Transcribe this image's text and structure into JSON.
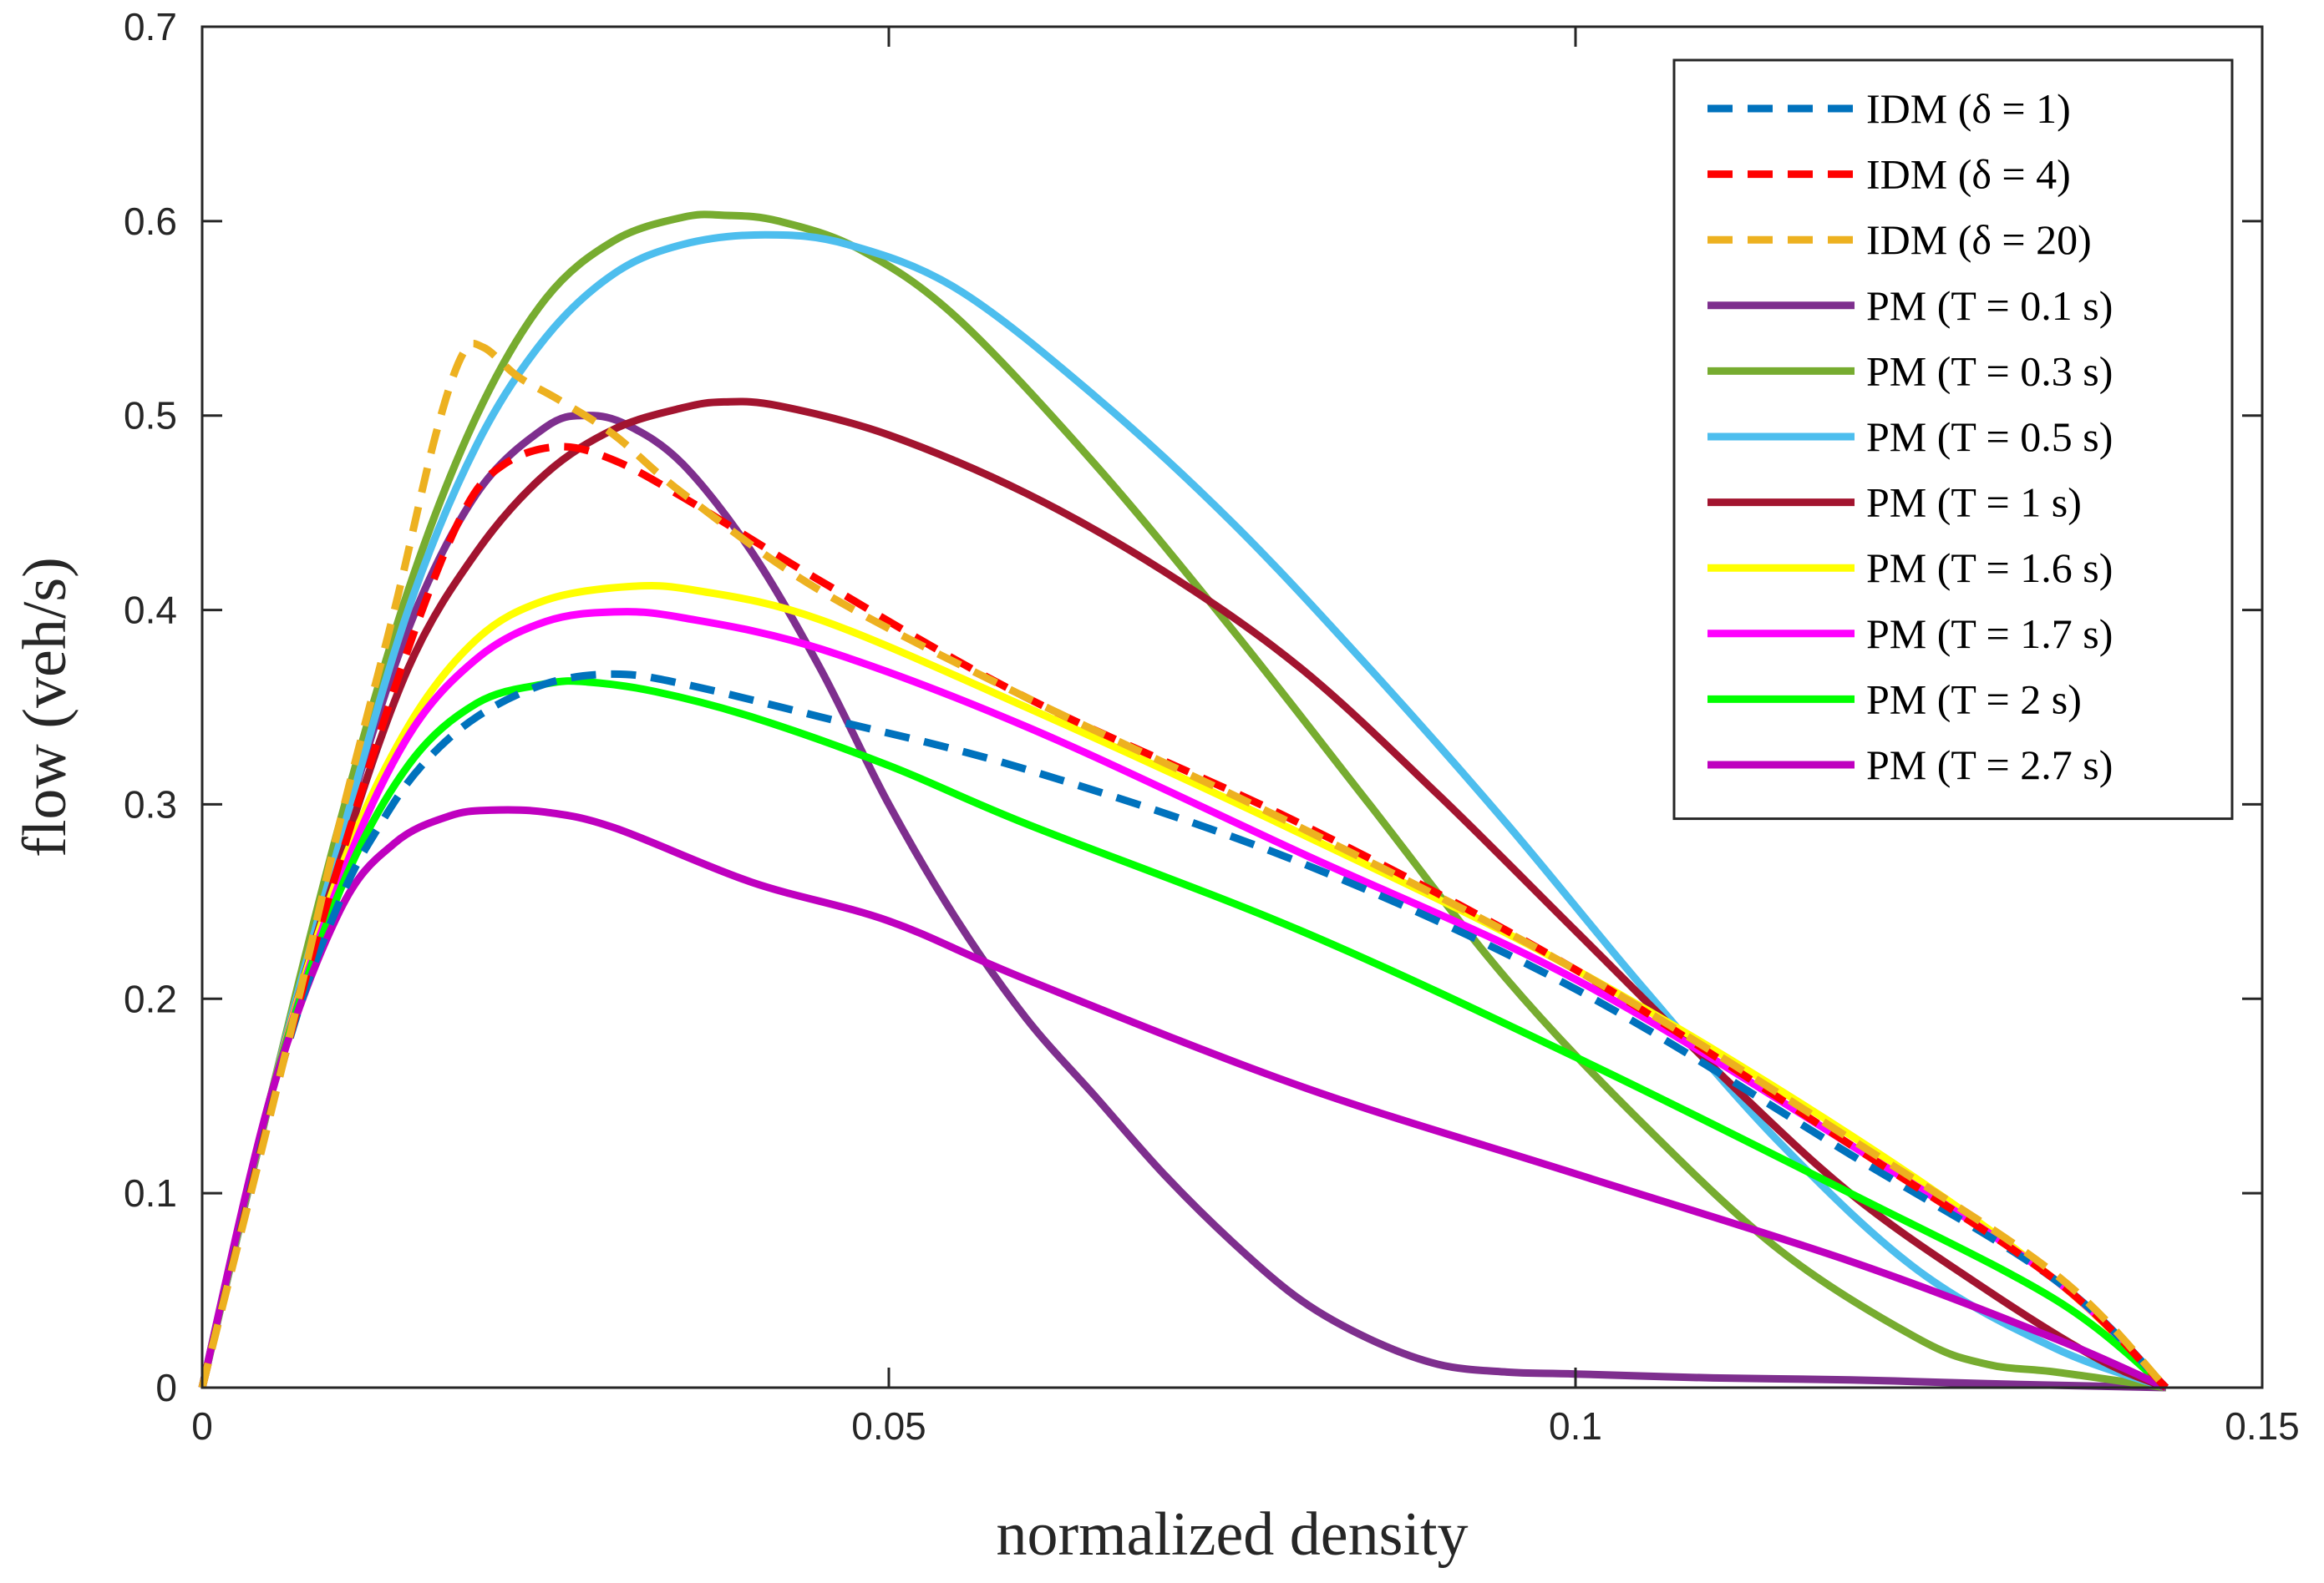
{
  "chart_data": {
    "type": "line",
    "xlabel": "normalized density",
    "ylabel": "flow (veh/s)",
    "xlim": [
      0,
      0.15
    ],
    "ylim": [
      0,
      0.7
    ],
    "xticks": [
      0,
      0.05,
      0.1,
      0.15
    ],
    "xtick_labels": [
      "0",
      "0.05",
      "0.1",
      "0.15"
    ],
    "yticks": [
      0,
      0.1,
      0.2,
      0.3,
      0.4,
      0.5,
      0.6,
      0.7
    ],
    "ytick_labels": [
      "0",
      "0.1",
      "0.2",
      "0.3",
      "0.4",
      "0.5",
      "0.6",
      "0.7"
    ],
    "grid": false,
    "legend_position": "top-right",
    "series": [
      {
        "name": "IDM (δ = 1)",
        "color": "#0072BD",
        "dashed": true,
        "points": [
          [
            0,
            0
          ],
          [
            0.006,
            0.17
          ],
          [
            0.01,
            0.25
          ],
          [
            0.013,
            0.29
          ],
          [
            0.016,
            0.32
          ],
          [
            0.02,
            0.345
          ],
          [
            0.025,
            0.362
          ],
          [
            0.03,
            0.367
          ],
          [
            0.035,
            0.362
          ],
          [
            0.045,
            0.345
          ],
          [
            0.06,
            0.318
          ],
          [
            0.08,
            0.27
          ],
          [
            0.1,
            0.205
          ],
          [
            0.12,
            0.12
          ],
          [
            0.135,
            0.055
          ],
          [
            0.143,
            0.0
          ]
        ]
      },
      {
        "name": "IDM (δ = 4)",
        "color": "#FF0000",
        "dashed": true,
        "points": [
          [
            0,
            0
          ],
          [
            0.006,
            0.17
          ],
          [
            0.01,
            0.27
          ],
          [
            0.015,
            0.38
          ],
          [
            0.019,
            0.45
          ],
          [
            0.022,
            0.475
          ],
          [
            0.026,
            0.484
          ],
          [
            0.03,
            0.477
          ],
          [
            0.035,
            0.458
          ],
          [
            0.045,
            0.415
          ],
          [
            0.06,
            0.355
          ],
          [
            0.08,
            0.29
          ],
          [
            0.1,
            0.215
          ],
          [
            0.12,
            0.125
          ],
          [
            0.135,
            0.055
          ],
          [
            0.143,
            0.0
          ]
        ]
      },
      {
        "name": "IDM (δ = 20)",
        "color": "#EDB120",
        "dashed": true,
        "points": [
          [
            0,
            0
          ],
          [
            0.006,
            0.17
          ],
          [
            0.01,
            0.29
          ],
          [
            0.014,
            0.4
          ],
          [
            0.017,
            0.49
          ],
          [
            0.019,
            0.532
          ],
          [
            0.0205,
            0.535
          ],
          [
            0.023,
            0.52
          ],
          [
            0.026,
            0.508
          ],
          [
            0.03,
            0.49
          ],
          [
            0.035,
            0.46
          ],
          [
            0.045,
            0.41
          ],
          [
            0.06,
            0.355
          ],
          [
            0.08,
            0.288
          ],
          [
            0.1,
            0.215
          ],
          [
            0.12,
            0.128
          ],
          [
            0.135,
            0.058
          ],
          [
            0.143,
            0.0
          ]
        ]
      },
      {
        "name": "PM (T = 0.1 s)",
        "color": "#7E2F8E",
        "dashed": false,
        "points": [
          [
            0,
            0
          ],
          [
            0.005,
            0.15
          ],
          [
            0.01,
            0.28
          ],
          [
            0.015,
            0.39
          ],
          [
            0.02,
            0.46
          ],
          [
            0.025,
            0.494
          ],
          [
            0.028,
            0.5
          ],
          [
            0.031,
            0.495
          ],
          [
            0.035,
            0.475
          ],
          [
            0.04,
            0.43
          ],
          [
            0.045,
            0.37
          ],
          [
            0.05,
            0.3
          ],
          [
            0.055,
            0.24
          ],
          [
            0.06,
            0.19
          ],
          [
            0.065,
            0.15
          ],
          [
            0.07,
            0.11
          ],
          [
            0.075,
            0.075
          ],
          [
            0.08,
            0.045
          ],
          [
            0.085,
            0.025
          ],
          [
            0.09,
            0.012
          ],
          [
            0.095,
            0.008
          ],
          [
            0.1,
            0.007
          ],
          [
            0.11,
            0.005
          ],
          [
            0.12,
            0.004
          ],
          [
            0.13,
            0.002
          ],
          [
            0.143,
            0.0
          ]
        ]
      },
      {
        "name": "PM (T = 0.3 s)",
        "color": "#77AC30",
        "dashed": false,
        "points": [
          [
            0,
            0
          ],
          [
            0.005,
            0.15
          ],
          [
            0.01,
            0.29
          ],
          [
            0.015,
            0.41
          ],
          [
            0.02,
            0.5
          ],
          [
            0.025,
            0.56
          ],
          [
            0.03,
            0.59
          ],
          [
            0.035,
            0.602
          ],
          [
            0.038,
            0.603
          ],
          [
            0.042,
            0.6
          ],
          [
            0.048,
            0.585
          ],
          [
            0.055,
            0.55
          ],
          [
            0.065,
            0.475
          ],
          [
            0.075,
            0.39
          ],
          [
            0.085,
            0.3
          ],
          [
            0.095,
            0.21
          ],
          [
            0.105,
            0.135
          ],
          [
            0.115,
            0.07
          ],
          [
            0.125,
            0.025
          ],
          [
            0.13,
            0.012
          ],
          [
            0.135,
            0.008
          ],
          [
            0.143,
            0.0
          ]
        ]
      },
      {
        "name": "PM (T = 0.5 s)",
        "color": "#4DBEEE",
        "dashed": false,
        "points": [
          [
            0,
            0
          ],
          [
            0.005,
            0.15
          ],
          [
            0.01,
            0.28
          ],
          [
            0.015,
            0.4
          ],
          [
            0.02,
            0.485
          ],
          [
            0.025,
            0.54
          ],
          [
            0.03,
            0.573
          ],
          [
            0.035,
            0.588
          ],
          [
            0.041,
            0.593
          ],
          [
            0.047,
            0.588
          ],
          [
            0.055,
            0.565
          ],
          [
            0.065,
            0.51
          ],
          [
            0.075,
            0.445
          ],
          [
            0.085,
            0.37
          ],
          [
            0.095,
            0.29
          ],
          [
            0.105,
            0.205
          ],
          [
            0.115,
            0.125
          ],
          [
            0.125,
            0.06
          ],
          [
            0.135,
            0.02
          ],
          [
            0.143,
            0.0
          ]
        ]
      },
      {
        "name": "PM (T = 1 s)",
        "color": "#A2142F",
        "dashed": false,
        "points": [
          [
            0,
            0
          ],
          [
            0.005,
            0.15
          ],
          [
            0.01,
            0.27
          ],
          [
            0.015,
            0.37
          ],
          [
            0.02,
            0.43
          ],
          [
            0.025,
            0.47
          ],
          [
            0.03,
            0.493
          ],
          [
            0.035,
            0.504
          ],
          [
            0.038,
            0.507
          ],
          [
            0.042,
            0.505
          ],
          [
            0.05,
            0.49
          ],
          [
            0.06,
            0.46
          ],
          [
            0.07,
            0.42
          ],
          [
            0.08,
            0.37
          ],
          [
            0.09,
            0.305
          ],
          [
            0.1,
            0.235
          ],
          [
            0.11,
            0.165
          ],
          [
            0.12,
            0.1
          ],
          [
            0.13,
            0.05
          ],
          [
            0.138,
            0.015
          ],
          [
            0.143,
            0.0
          ]
        ]
      },
      {
        "name": "PM (T = 1.6 s)",
        "color": "#FFFF00",
        "dashed": false,
        "points": [
          [
            0,
            0
          ],
          [
            0.005,
            0.15
          ],
          [
            0.01,
            0.265
          ],
          [
            0.015,
            0.34
          ],
          [
            0.02,
            0.385
          ],
          [
            0.025,
            0.405
          ],
          [
            0.031,
            0.412
          ],
          [
            0.036,
            0.41
          ],
          [
            0.045,
            0.395
          ],
          [
            0.06,
            0.35
          ],
          [
            0.08,
            0.285
          ],
          [
            0.1,
            0.215
          ],
          [
            0.12,
            0.13
          ],
          [
            0.135,
            0.055
          ],
          [
            0.143,
            0.0
          ]
        ]
      },
      {
        "name": "PM (T = 1.7 s)",
        "color": "#FF00FF",
        "dashed": false,
        "points": [
          [
            0,
            0
          ],
          [
            0.005,
            0.15
          ],
          [
            0.01,
            0.26
          ],
          [
            0.015,
            0.335
          ],
          [
            0.02,
            0.375
          ],
          [
            0.025,
            0.394
          ],
          [
            0.03,
            0.399
          ],
          [
            0.035,
            0.396
          ],
          [
            0.045,
            0.38
          ],
          [
            0.06,
            0.34
          ],
          [
            0.08,
            0.275
          ],
          [
            0.1,
            0.21
          ],
          [
            0.12,
            0.125
          ],
          [
            0.135,
            0.055
          ],
          [
            0.143,
            0.0
          ]
        ]
      },
      {
        "name": "PM (T = 2 s)",
        "color": "#00FF00",
        "dashed": false,
        "points": [
          [
            0,
            0
          ],
          [
            0.005,
            0.15
          ],
          [
            0.01,
            0.255
          ],
          [
            0.015,
            0.32
          ],
          [
            0.02,
            0.352
          ],
          [
            0.025,
            0.362
          ],
          [
            0.028,
            0.363
          ],
          [
            0.033,
            0.358
          ],
          [
            0.04,
            0.345
          ],
          [
            0.05,
            0.32
          ],
          [
            0.06,
            0.29
          ],
          [
            0.08,
            0.235
          ],
          [
            0.1,
            0.17
          ],
          [
            0.12,
            0.1
          ],
          [
            0.135,
            0.045
          ],
          [
            0.143,
            0.0
          ]
        ]
      },
      {
        "name": "PM (T = 2.7 s)",
        "color": "#BF00BF",
        "dashed": false,
        "points": [
          [
            0,
            0
          ],
          [
            0.005,
            0.15
          ],
          [
            0.01,
            0.245
          ],
          [
            0.014,
            0.28
          ],
          [
            0.018,
            0.294
          ],
          [
            0.021,
            0.297
          ],
          [
            0.025,
            0.296
          ],
          [
            0.03,
            0.288
          ],
          [
            0.04,
            0.26
          ],
          [
            0.05,
            0.24
          ],
          [
            0.06,
            0.21
          ],
          [
            0.08,
            0.155
          ],
          [
            0.1,
            0.11
          ],
          [
            0.12,
            0.065
          ],
          [
            0.135,
            0.025
          ],
          [
            0.143,
            0.0
          ]
        ]
      }
    ]
  }
}
